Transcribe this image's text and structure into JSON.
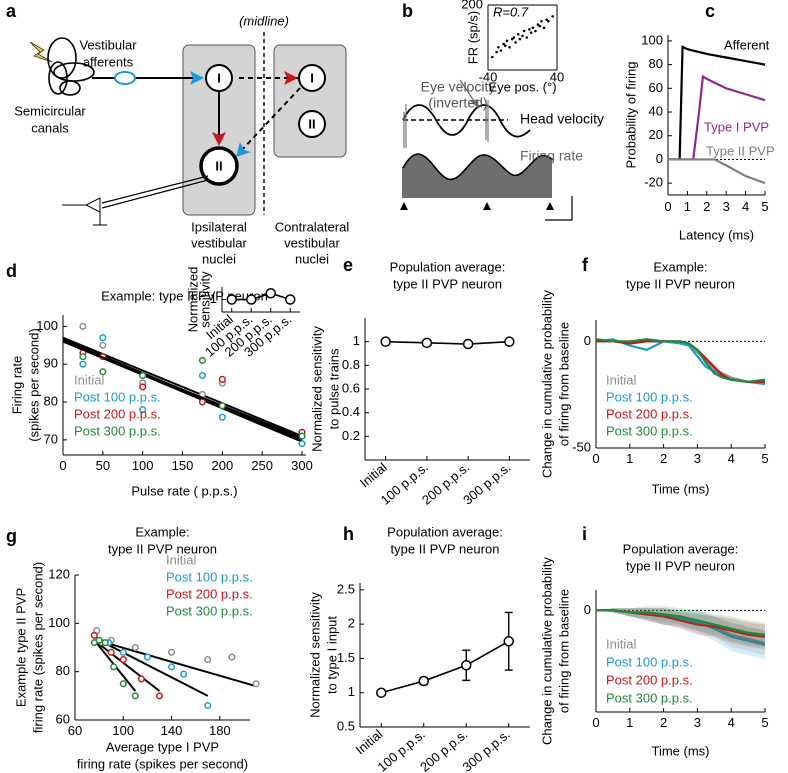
{
  "panel_labels": [
    "a",
    "b",
    "c",
    "d",
    "e",
    "f",
    "g",
    "h",
    "i"
  ],
  "diagram_a": {
    "vestibular_afferents": [
      "Vestibular",
      "afferents"
    ],
    "canals": [
      "Semicircular",
      "canals"
    ],
    "midline": "(midline)",
    "nodes": [
      "I",
      "I",
      "II",
      "II"
    ],
    "ipsilateral": [
      "Ipsilateral",
      "vestibular",
      "nuclei"
    ],
    "contralateral": [
      "Contralateral",
      "vestibular",
      "nuclei"
    ]
  },
  "diagram_b": {
    "eye_velocity": [
      "Eye velocity",
      "(inverted)"
    ],
    "head_velocity": "Head velocity",
    "firing_rate": "Firing rate"
  },
  "chart_data": [
    {
      "type": "scatter",
      "annotation": "R=0.7",
      "xlabel": "Eye pos. (°)",
      "ylabel": "FR (sp/s)",
      "xlim": [
        -40,
        40
      ],
      "ylim": [
        0,
        200
      ],
      "xticks": [
        -40,
        40
      ],
      "yticks": [
        200
      ],
      "marker": "dot",
      "series": [
        {
          "color": "#000000",
          "x": [
            -35,
            -30,
            -28,
            -25,
            -22,
            -20,
            -18,
            -15,
            -12,
            -10,
            -8,
            -5,
            -3,
            0,
            2,
            5,
            8,
            10,
            12,
            15,
            18,
            20,
            22,
            25,
            28,
            30,
            35
          ],
          "values": [
            40,
            55,
            70,
            60,
            80,
            75,
            90,
            70,
            95,
            100,
            85,
            110,
            95,
            105,
            120,
            100,
            125,
            115,
            130,
            120,
            140,
            135,
            150,
            130,
            155,
            150,
            165
          ]
        }
      ]
    },
    {
      "type": "line",
      "ylabel": "Probability of firing",
      "xlabel": "Latency (ms)",
      "xlim": [
        0,
        5
      ],
      "ylim": [
        -30,
        105
      ],
      "xticks": [
        0,
        1,
        2,
        3,
        4,
        5
      ],
      "yticks": [
        -20,
        0,
        20,
        40,
        60,
        80,
        100
      ],
      "zero_line": true,
      "series": [
        {
          "name": "Afferent",
          "color": "#000000",
          "x": [
            0,
            0.6,
            0.75,
            1,
            2,
            3,
            4,
            5
          ],
          "values": [
            0,
            0,
            95,
            93,
            89,
            86,
            83,
            80
          ]
        },
        {
          "name": "Type I PVP",
          "color": "#93278f",
          "x": [
            0,
            1.3,
            1.6,
            1.8,
            2,
            3,
            4,
            5
          ],
          "values": [
            0,
            0,
            40,
            70,
            68,
            60,
            55,
            50
          ]
        },
        {
          "name": "Type II PVP",
          "color": "#7f7f7f",
          "x": [
            0,
            2.4,
            3,
            4,
            5
          ],
          "values": [
            0,
            0,
            -5,
            -14,
            -20
          ]
        }
      ]
    },
    {
      "type": "scatter",
      "title": "Example: type II PVP neuron",
      "ylabel": [
        "Firing rate",
        "(spikes per second)"
      ],
      "xlabel": "Pulse rate ( p.p.s.)",
      "xlim": [
        0,
        305
      ],
      "ylim": [
        66,
        103
      ],
      "xticks": [
        0,
        50,
        100,
        150,
        200,
        250,
        300
      ],
      "yticks": [
        70,
        80,
        90,
        100
      ],
      "marker": "circle-open",
      "x": [
        25,
        50,
        100,
        175,
        200,
        300
      ],
      "fit_x": [
        0,
        300
      ],
      "series": [
        {
          "name": "Initial",
          "color": "#8c8c8c",
          "values": [
            100,
            95,
            85,
            82,
            85,
            72
          ],
          "fit": [
            97,
            71
          ]
        },
        {
          "name": "Post 100 p.p.s.",
          "color": "#1a9ad6",
          "values": [
            90,
            97,
            78,
            87,
            76,
            69
          ],
          "fit": [
            96,
            69.5
          ]
        },
        {
          "name": "Post 200 p.p.s.",
          "color": "#c4161c",
          "values": [
            93,
            92,
            84,
            80,
            86,
            72
          ],
          "fit": [
            96.5,
            70
          ]
        },
        {
          "name": "Post 300 p.p.s.",
          "color": "#1f8a3a",
          "values": [
            92,
            88,
            87,
            91,
            79,
            71
          ],
          "fit": [
            96,
            70.5
          ]
        }
      ]
    },
    {
      "type": "line",
      "ylabel": [
        "Normalized",
        "sensitivity"
      ],
      "categories": [
        "Initial",
        "100 p.p.s.",
        "200 p.p.s.",
        "300 p.p.s."
      ],
      "ylim": [
        0.8,
        1.2
      ],
      "yticks": [
        1
      ],
      "marker": "circle-open",
      "series": [
        {
          "color": "#000000",
          "values": [
            1,
            1,
            1.1,
            1
          ]
        }
      ]
    },
    {
      "type": "line",
      "title": [
        "Population average:",
        "type II PVP neuron"
      ],
      "ylabel": [
        "Normalized sensitivity",
        "to pulse trains"
      ],
      "categories": [
        "Initial",
        "100 p.p.s.",
        "200 p.p.s.",
        "300 p.p.s."
      ],
      "ylim": [
        0,
        1.2
      ],
      "yticks": [
        0.2,
        0.4,
        0.6,
        0.8,
        1
      ],
      "marker": "circle-open",
      "series": [
        {
          "color": "#000000",
          "values": [
            1,
            0.99,
            0.98,
            1.0
          ]
        }
      ]
    },
    {
      "type": "line",
      "title": [
        "Example:",
        "type II PVP neuron"
      ],
      "ylabel": [
        "Change in cumulative probability",
        "of firing from baseline"
      ],
      "xlabel": "Time (ms)",
      "xlim": [
        0,
        5
      ],
      "ylim": [
        -50,
        10
      ],
      "xticks": [
        0,
        1,
        2,
        3,
        4,
        5
      ],
      "yticks": [
        -50,
        0
      ],
      "zero_line": true,
      "x": [
        0,
        0.5,
        1,
        1.5,
        2,
        2.5,
        2.75,
        3,
        3.25,
        3.5,
        3.75,
        4,
        4.5,
        5
      ],
      "series": [
        {
          "name": "Initial",
          "color": "#8c8c8c",
          "values": [
            0,
            0,
            -1,
            0,
            0,
            -1,
            -2,
            -5,
            -9,
            -13,
            -15,
            -17,
            -19,
            -19
          ]
        },
        {
          "name": "Post 100 p.p.s.",
          "color": "#1a9ad6",
          "values": [
            0,
            1,
            -2,
            -4,
            0,
            -1,
            -2,
            -7,
            -12,
            -14,
            -16,
            -18,
            -19,
            -20
          ]
        },
        {
          "name": "Post 200 p.p.s.",
          "color": "#c4161c",
          "values": [
            0,
            0,
            -1,
            0,
            0,
            0,
            -1,
            -4,
            -8,
            -12,
            -16,
            -18,
            -19,
            -19
          ]
        },
        {
          "name": "Post 300 p.p.s.",
          "color": "#1f8a3a",
          "values": [
            1,
            0,
            0,
            1,
            0,
            0,
            -1,
            -4,
            -10,
            -15,
            -17,
            -18,
            -19,
            -18
          ]
        }
      ]
    },
    {
      "type": "scatter",
      "title": [
        "Example:",
        "type II PVP neuron"
      ],
      "ylabel": [
        "Example type II PVP",
        "firing rate (spikes per second)"
      ],
      "xlabel": [
        "Average type I PVP",
        "firing rate (spikes per second)"
      ],
      "xlim": [
        60,
        205
      ],
      "ylim": [
        60,
        120
      ],
      "xticks": [
        60,
        100,
        140,
        180
      ],
      "yticks": [
        60,
        80,
        100,
        120
      ],
      "marker": "circle-open",
      "series": [
        {
          "name": "Initial",
          "color": "#8c8c8c",
          "x": [
            78,
            90,
            110,
            140,
            170,
            190,
            210
          ],
          "values": [
            97,
            93,
            90,
            88,
            85,
            86,
            75
          ],
          "fit_x": [
            78,
            210
          ],
          "fit": [
            93,
            74
          ]
        },
        {
          "name": "Post 100 p.p.s.",
          "color": "#1a9ad6",
          "x": [
            80,
            88,
            100,
            120,
            140,
            150,
            170
          ],
          "values": [
            93,
            92,
            88,
            86,
            82,
            79,
            66
          ],
          "fit_x": [
            80,
            170
          ],
          "fit": [
            93,
            70
          ]
        },
        {
          "name": "Post 200 p.p.s.",
          "color": "#c4161c",
          "x": [
            76,
            82,
            90,
            100,
            115,
            130
          ],
          "values": [
            95,
            92,
            88,
            85,
            77,
            70
          ],
          "fit_x": [
            76,
            130
          ],
          "fit": [
            93,
            72
          ]
        },
        {
          "name": "Post 300 p.p.s.",
          "color": "#1f8a3a",
          "x": [
            76,
            80,
            85,
            92,
            100,
            110
          ],
          "values": [
            92,
            93,
            92,
            82,
            75,
            70
          ],
          "fit_x": [
            76,
            110
          ],
          "fit": [
            93,
            72
          ]
        }
      ]
    },
    {
      "type": "line",
      "title": [
        "Population average:",
        "type II PVP neuron"
      ],
      "ylabel": [
        "Normalized sensitivity",
        "to type I input"
      ],
      "categories": [
        "Initial",
        "100 p.p.s.",
        "200 p.p.s.",
        "300 p.p.s."
      ],
      "ylim": [
        0.5,
        2.6
      ],
      "yticks": [
        0.5,
        1,
        1.5,
        2,
        2.5
      ],
      "marker": "circle-open",
      "series": [
        {
          "color": "#000000",
          "values": [
            1,
            1.17,
            1.4,
            1.75
          ],
          "errors": [
            0.03,
            0.05,
            0.22,
            0.42
          ]
        }
      ]
    },
    {
      "type": "line",
      "title": [
        "Population average:",
        "type II PVP neuron"
      ],
      "ylabel": [
        "Change in cumulative probability",
        "of firing from baseline"
      ],
      "xlabel": "Time (ms)",
      "xlim": [
        0,
        5
      ],
      "ylim": [
        -50,
        10
      ],
      "xticks": [
        0,
        1,
        2,
        3,
        4,
        5
      ],
      "yticks": [
        0
      ],
      "zero_line": true,
      "band": true,
      "x": [
        0,
        0.5,
        1,
        1.5,
        2,
        2.5,
        3,
        3.5,
        4,
        4.5,
        5
      ],
      "series": [
        {
          "name": "Initial",
          "color": "#8c8c8c",
          "values": [
            0,
            0,
            -1,
            -2,
            -3,
            -4,
            -5,
            -8,
            -12,
            -14,
            -16
          ],
          "errors": [
            0,
            1,
            2,
            3,
            4,
            4,
            5,
            5,
            6,
            6,
            6
          ]
        },
        {
          "name": "Post 100 p.p.s.",
          "color": "#1a9ad6",
          "values": [
            0,
            0,
            -1,
            -2,
            -3,
            -4,
            -6,
            -9,
            -13,
            -15,
            -17
          ],
          "errors": [
            0,
            1,
            2,
            3,
            4,
            4,
            5,
            6,
            7,
            7,
            7
          ]
        },
        {
          "name": "Post 200 p.p.s.",
          "color": "#c4161c",
          "values": [
            0,
            0,
            -1,
            -2,
            -3,
            -5,
            -7,
            -8,
            -10,
            -12,
            -13
          ],
          "errors": [
            0,
            1,
            2,
            3,
            4,
            4,
            5,
            5,
            6,
            6,
            6
          ]
        },
        {
          "name": "Post 300 p.p.s.",
          "color": "#1f8a3a",
          "values": [
            0,
            0,
            -1,
            -1,
            -2,
            -3,
            -5,
            -7,
            -9,
            -11,
            -12
          ],
          "errors": [
            0,
            1,
            2,
            3,
            4,
            4,
            5,
            5,
            6,
            6,
            6
          ]
        }
      ]
    }
  ]
}
